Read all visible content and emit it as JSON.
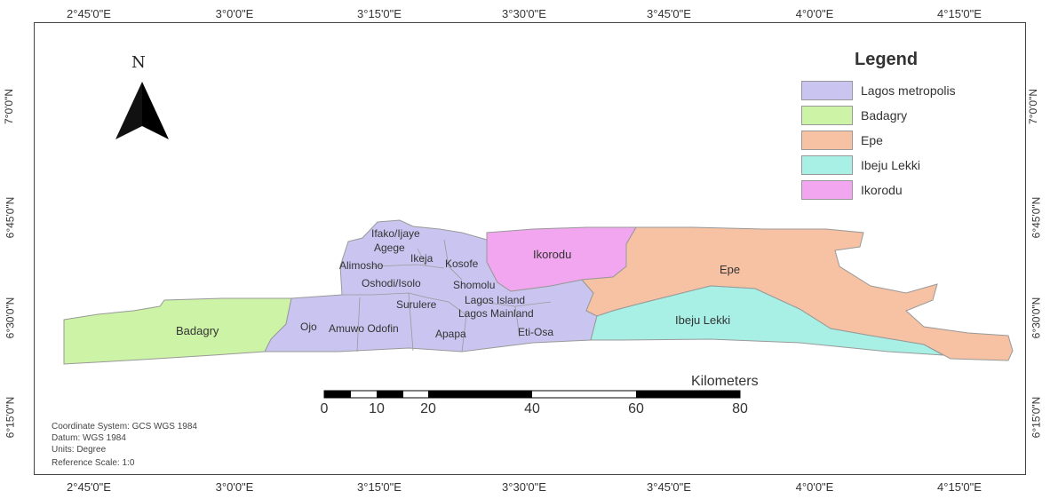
{
  "axes": {
    "top": [
      "2°45'0\"E",
      "3°0'0\"E",
      "3°15'0\"E",
      "3°30'0\"E",
      "3°45'0\"E",
      "4°0'0\"E",
      "4°15'0\"E"
    ],
    "bottom": [
      "2°45'0\"E",
      "3°0'0\"E",
      "3°15'0\"E",
      "3°30'0\"E",
      "3°45'0\"E",
      "4°0'0\"E",
      "4°15'0\"E"
    ],
    "left": [
      "7°0'0\"N",
      "6°45'0\"N",
      "6°30'0\"N",
      "6°15'0\"N"
    ],
    "right": [
      "7°0'0\"N",
      "6°45'0\"N",
      "6°30'0\"N",
      "6°15'0\"N"
    ]
  },
  "north_arrow": {
    "label": "N"
  },
  "legend": {
    "title": "Legend",
    "items": [
      {
        "label": "Lagos metropolis",
        "color": "#c9c5f0"
      },
      {
        "label": "Badagry",
        "color": "#cdf3a6"
      },
      {
        "label": "Epe",
        "color": "#f6c2a3"
      },
      {
        "label": "Ibeju Lekki",
        "color": "#a8f0e6"
      },
      {
        "label": "Ikorodu",
        "color": "#f2a6ef"
      }
    ]
  },
  "regions": {
    "badagry": "Badagry",
    "ikorodu": "Ikorodu",
    "epe": "Epe",
    "ibeju_lekki": "Ibeju Lekki"
  },
  "districts": [
    "Ifako/Ijaye",
    "Agege",
    "Ikeja",
    "Alimosho",
    "Kosofe",
    "Oshodi/Isolo",
    "Shomolu",
    "Surulere",
    "Lagos Island",
    "Lagos Mainland",
    "Ojo",
    "Amuwo Odofin",
    "Apapa",
    "Eti-Osa"
  ],
  "scale_bar": {
    "title": "Kilometers",
    "ticks": [
      "0",
      "10",
      "20",
      "40",
      "60",
      "80"
    ]
  },
  "metadata": {
    "coordinate_system": "Coordinate System: GCS WGS 1984",
    "datum": "Datum: WGS 1984",
    "units": "Units: Degree",
    "reference_scale": "Reference Scale: 1:0"
  }
}
